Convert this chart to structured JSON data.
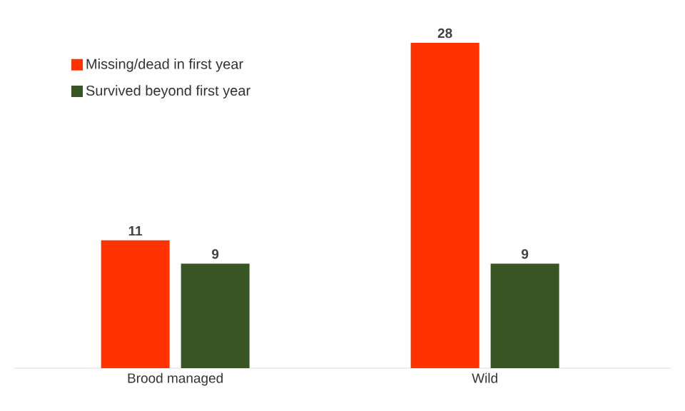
{
  "chart_data": {
    "type": "bar",
    "categories": [
      "Brood managed",
      "Wild"
    ],
    "series": [
      {
        "name": "Missing/dead in first year",
        "color": "#ff3300",
        "values": [
          11,
          28
        ]
      },
      {
        "name": "Survived beyond first year",
        "color": "#375623",
        "values": [
          9,
          9
        ]
      }
    ],
    "data_labels": true,
    "legend": "top left"
  }
}
